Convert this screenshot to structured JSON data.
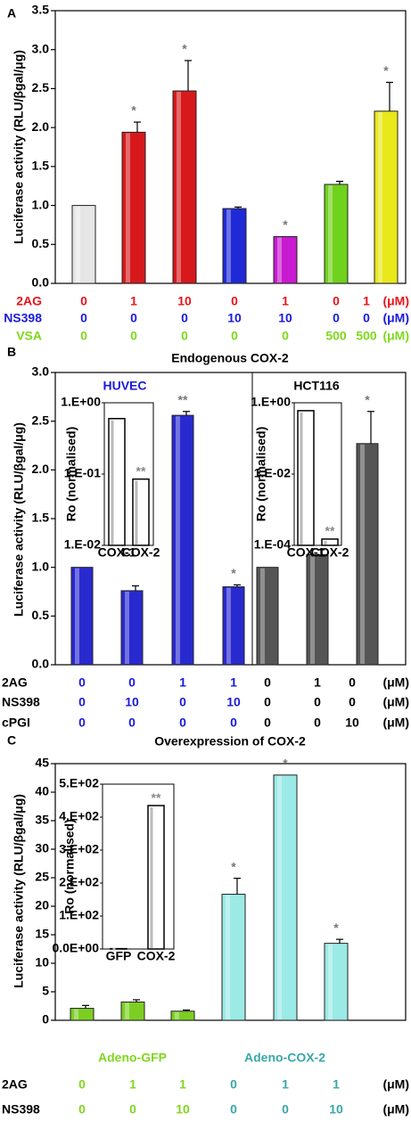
{
  "chart_data": [
    {
      "type": "bar",
      "panel_label": "A",
      "y_label": "Luciferase activity (RLU/βgal/μg)",
      "ylim": [
        0,
        3.5
      ],
      "yticks": [
        {
          "value": 0,
          "label": "0.0"
        },
        0.5,
        {
          "value": 1,
          "label": "1.0"
        },
        1.5,
        {
          "value": 2,
          "label": "2.0"
        },
        2.5,
        {
          "value": 3,
          "label": "3.0"
        },
        3.5
      ],
      "values": [
        1.0,
        1.94,
        2.47,
        0.96,
        0.6,
        1.27,
        2.21
      ],
      "errors": [
        null,
        0.13,
        0.39,
        0.02,
        null,
        0.04,
        0.37
      ],
      "colors": [
        "#e6e6e6",
        "#d7191c",
        "#d7191c",
        "#1f2ad6",
        "#c81ad0",
        "#6fd21c",
        "#e8e81a"
      ],
      "significance": [
        null,
        "*",
        "*",
        null,
        "*",
        null,
        "*"
      ],
      "conditions": [
        {
          "label": "2AG",
          "color": "#e8141b",
          "values": [
            0,
            1,
            10,
            0,
            1,
            0,
            1
          ],
          "unit": "(μM)"
        },
        {
          "label": "NS398",
          "color": "#1a1adb",
          "values": [
            0,
            0,
            0,
            10,
            10,
            0,
            0
          ],
          "unit": "(μM)"
        },
        {
          "label": "VSA",
          "color": "#7fd81e",
          "values": [
            0,
            0,
            0,
            0,
            0,
            500,
            500
          ],
          "unit": "(μM)"
        }
      ]
    },
    {
      "type": "bar",
      "panel_label": "B",
      "title": "Endogenous COX-2",
      "y_label": "Luciferase activity (RLU/βgal/μg)",
      "ylim": [
        0,
        3
      ],
      "yticks": [
        {
          "value": 0,
          "label": "0.0"
        },
        0.5,
        {
          "value": 1,
          "label": "1.0"
        },
        1.5,
        {
          "value": 2,
          "label": "2.0"
        },
        2.5,
        {
          "value": 3,
          "label": "3.0"
        }
      ],
      "values": [
        1.0,
        0.76,
        2.56,
        0.8,
        1.0,
        1.13,
        2.27
      ],
      "errors": [
        null,
        0.05,
        0.04,
        0.02,
        null,
        0.05,
        0.33
      ],
      "colors": [
        "#2929d0",
        "#2929d0",
        "#2929d0",
        "#2929d0",
        "#555555",
        "#555555",
        "#555555"
      ],
      "significance": [
        null,
        null,
        "**",
        "*",
        null,
        null,
        "*"
      ],
      "divider_before": 4,
      "column_colors": [
        "#1a1adb",
        "#1a1adb",
        "#1a1adb",
        "#1a1adb",
        "#000000",
        "#000000",
        "#000000"
      ],
      "conditions": [
        {
          "label": "2AG",
          "color": "#000000",
          "values": [
            0,
            0,
            1,
            1,
            0,
            1,
            0
          ],
          "unit": "(μM)"
        },
        {
          "label": "NS398",
          "color": "#000000",
          "values": [
            0,
            10,
            0,
            10,
            0,
            0,
            0
          ],
          "unit": "(μM)"
        },
        {
          "label": "cPGI",
          "color": "#000000",
          "values": [
            0,
            0,
            0,
            0,
            0,
            0,
            10
          ],
          "unit": "(μM)"
        }
      ],
      "insets": [
        {
          "type": "bar",
          "title": "HUVEC",
          "title_color": "#1a1adb",
          "y_label": "Ro (normalised)",
          "log": true,
          "ylim": [
            0.01,
            1
          ],
          "yticks": [
            {
              "value": 1,
              "label": "1.E+00"
            },
            {
              "value": 0.1,
              "label": "1.E-01"
            },
            {
              "value": 0.01,
              "label": "1.E-02"
            }
          ],
          "categories": [
            "COX-1",
            "COX-2"
          ],
          "values": [
            0.6,
            0.085
          ],
          "significance": [
            null,
            "**"
          ]
        },
        {
          "type": "bar",
          "title": "HCT116",
          "title_color": "#000000",
          "y_label": "Ro (normalised)",
          "log": true,
          "ylim": [
            0.0001,
            1
          ],
          "yticks": [
            {
              "value": 1,
              "label": "1.E+00"
            },
            {
              "value": 0.01,
              "label": "1.E-02"
            },
            {
              "value": 0.0001,
              "label": "1.E-04"
            }
          ],
          "categories": [
            "COX-1",
            "COX-2"
          ],
          "values": [
            0.6,
            0.00015
          ],
          "significance": [
            null,
            "**"
          ]
        }
      ]
    },
    {
      "type": "bar",
      "panel_label": "C",
      "title": "Overexpression of COX-2",
      "y_label": "Luciferase activity (RLU/βgal/μg)",
      "ylim": [
        0,
        45
      ],
      "yticks": [
        0,
        5,
        10,
        15,
        20,
        25,
        30,
        35,
        40,
        45
      ],
      "values": [
        2.1,
        3.2,
        1.6,
        22.1,
        43,
        13.5
      ],
      "errors": [
        0.5,
        0.4,
        0.2,
        2.8,
        null,
        0.7
      ],
      "colors": [
        "#7ccf22",
        "#7ccf22",
        "#7ccf22",
        "#9ceae6",
        "#9ceae6",
        "#9ceae6"
      ],
      "significance": [
        null,
        null,
        null,
        "*",
        "*",
        "*"
      ],
      "column_colors": [
        "#7fd81e",
        "#7fd81e",
        "#7fd81e",
        "#3aa7a7",
        "#3aa7a7",
        "#3aa7a7"
      ],
      "groups": [
        {
          "label": "Adeno-GFP",
          "color": "#7fd81e",
          "span": [
            0,
            2
          ]
        },
        {
          "label": "Adeno-COX-2",
          "color": "#3aa7a7",
          "span": [
            3,
            5
          ]
        }
      ],
      "conditions": [
        {
          "label": "2AG",
          "color": "#000000",
          "values": [
            0,
            1,
            1,
            0,
            1,
            1
          ],
          "unit": "(μM)"
        },
        {
          "label": "NS398",
          "color": "#000000",
          "values": [
            0,
            0,
            10,
            0,
            0,
            10
          ],
          "unit": "(μM)"
        }
      ],
      "insets": [
        {
          "type": "bar",
          "y_label": "Ro (normalised)",
          "ylim": [
            0,
            500
          ],
          "yticks": [
            {
              "value": 0,
              "label": "0.0E+00"
            },
            {
              "value": 100,
              "label": "1.E+02"
            },
            {
              "value": 200,
              "label": "2.E+02"
            },
            {
              "value": 300,
              "label": "3.E+02"
            },
            {
              "value": 400,
              "label": "4.E+02"
            },
            {
              "value": 500,
              "label": "5.E+02"
            }
          ],
          "categories": [
            "GFP",
            "COX-2"
          ],
          "values": [
            1,
            435
          ],
          "significance": [
            null,
            "**"
          ]
        }
      ]
    }
  ]
}
